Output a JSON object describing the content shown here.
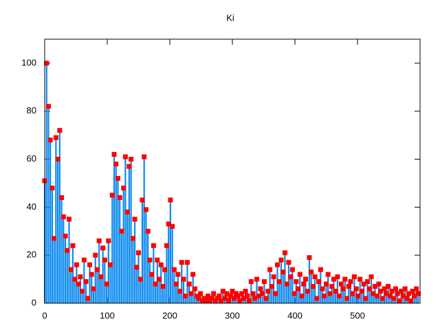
{
  "chart_data": {
    "type": "impulse",
    "title": "Ki",
    "x": [
      0,
      3,
      6,
      9,
      12,
      15,
      18,
      21,
      24,
      27,
      30,
      33,
      36,
      39,
      42,
      45,
      48,
      51,
      54,
      57,
      60,
      63,
      66,
      69,
      72,
      75,
      78,
      81,
      84,
      87,
      90,
      93,
      96,
      99,
      102,
      105,
      108,
      111,
      114,
      117,
      120,
      123,
      126,
      129,
      132,
      135,
      138,
      141,
      144,
      147,
      150,
      153,
      156,
      159,
      162,
      165,
      168,
      171,
      174,
      177,
      180,
      183,
      186,
      189,
      192,
      195,
      198,
      201,
      204,
      207,
      210,
      213,
      216,
      219,
      222,
      225,
      228,
      231,
      234,
      237,
      240,
      243,
      246,
      249,
      252,
      255,
      258,
      261,
      264,
      267,
      270,
      273,
      276,
      279,
      282,
      285,
      288,
      291,
      294,
      297,
      300,
      303,
      306,
      309,
      312,
      315,
      318,
      321,
      324,
      327,
      330,
      333,
      336,
      339,
      342,
      345,
      348,
      351,
      354,
      357,
      360,
      363,
      366,
      369,
      372,
      375,
      378,
      381,
      384,
      387,
      390,
      393,
      396,
      399,
      402,
      405,
      408,
      411,
      414,
      417,
      420,
      423,
      426,
      429,
      432,
      435,
      438,
      441,
      444,
      447,
      450,
      453,
      456,
      459,
      462,
      465,
      468,
      471,
      474,
      477,
      480,
      483,
      486,
      489,
      492,
      495,
      498,
      501,
      504,
      507,
      510,
      513,
      516,
      519,
      522,
      525,
      528,
      531,
      534,
      537,
      540,
      543,
      546,
      549,
      552,
      555,
      558,
      561,
      564,
      567,
      570,
      573,
      576,
      579,
      582,
      585,
      588,
      591,
      594,
      597
    ],
    "values": [
      51,
      100,
      82,
      68,
      48,
      27,
      69,
      60,
      72,
      44,
      36,
      28,
      22,
      35,
      14,
      24,
      10,
      16,
      8,
      11,
      5,
      18,
      9,
      2,
      16,
      12,
      6,
      20,
      14,
      26,
      11,
      23,
      18,
      8,
      26,
      16,
      45,
      62,
      58,
      52,
      44,
      30,
      48,
      61,
      38,
      57,
      60,
      27,
      35,
      15,
      21,
      10,
      43,
      61,
      39,
      30,
      18,
      12,
      24,
      8,
      18,
      10,
      16,
      7,
      14,
      24,
      33,
      43,
      32,
      14,
      8,
      12,
      5,
      17,
      10,
      3,
      17,
      8,
      4,
      12,
      6,
      3,
      2,
      4,
      1,
      2,
      1,
      3,
      1,
      2,
      4,
      1,
      2,
      3,
      1,
      5,
      2,
      4,
      1,
      3,
      5,
      2,
      4,
      3,
      1,
      4,
      2,
      5,
      3,
      1,
      9,
      4,
      2,
      10,
      3,
      6,
      4,
      9,
      2,
      5,
      14,
      7,
      11,
      4,
      16,
      9,
      18,
      13,
      21,
      8,
      17,
      11,
      14,
      4,
      9,
      6,
      12,
      3,
      8,
      10,
      5,
      19,
      13,
      7,
      11,
      2,
      9,
      14,
      6,
      3,
      8,
      12,
      4,
      7,
      10,
      5,
      11,
      3,
      8,
      6,
      10,
      2,
      7,
      9,
      4,
      11,
      6,
      3,
      10,
      5,
      8,
      2,
      9,
      6,
      11,
      4,
      7,
      3,
      8,
      5,
      2,
      6,
      4,
      7,
      3,
      5,
      2,
      6,
      4,
      1,
      5,
      3,
      6,
      2,
      4,
      1,
      5,
      3,
      6,
      4
    ],
    "color": "#0a8af0",
    "marker_color": "#ff0000",
    "xlim": [
      0,
      600
    ],
    "ylim": [
      0,
      110
    ],
    "xticks": [
      0,
      100,
      200,
      300,
      400,
      500
    ],
    "yticks": [
      0,
      20,
      40,
      60,
      80,
      100
    ],
    "grid": false
  }
}
